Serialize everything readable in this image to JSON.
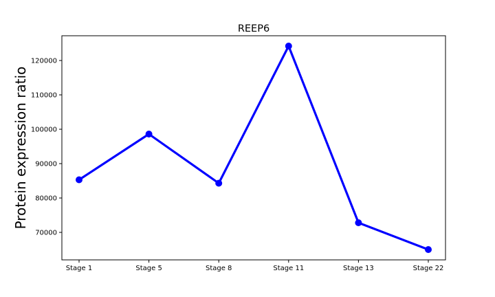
{
  "chart_data": {
    "type": "line",
    "title": "REEP6",
    "xlabel": "",
    "ylabel": "Protein expression ratio",
    "categories": [
      "Stage 1",
      "Stage 5",
      "Stage 8",
      "Stage 11",
      "Stage 13",
      "Stage 22"
    ],
    "series": [
      {
        "values": [
          85300,
          98600,
          84300,
          124200,
          72800,
          65000
        ],
        "color": "#0000ff"
      }
    ],
    "yticks": [
      70000,
      80000,
      90000,
      100000,
      110000,
      120000
    ],
    "ylim": [
      62000,
      127200
    ],
    "grid": false,
    "legend": "none"
  }
}
